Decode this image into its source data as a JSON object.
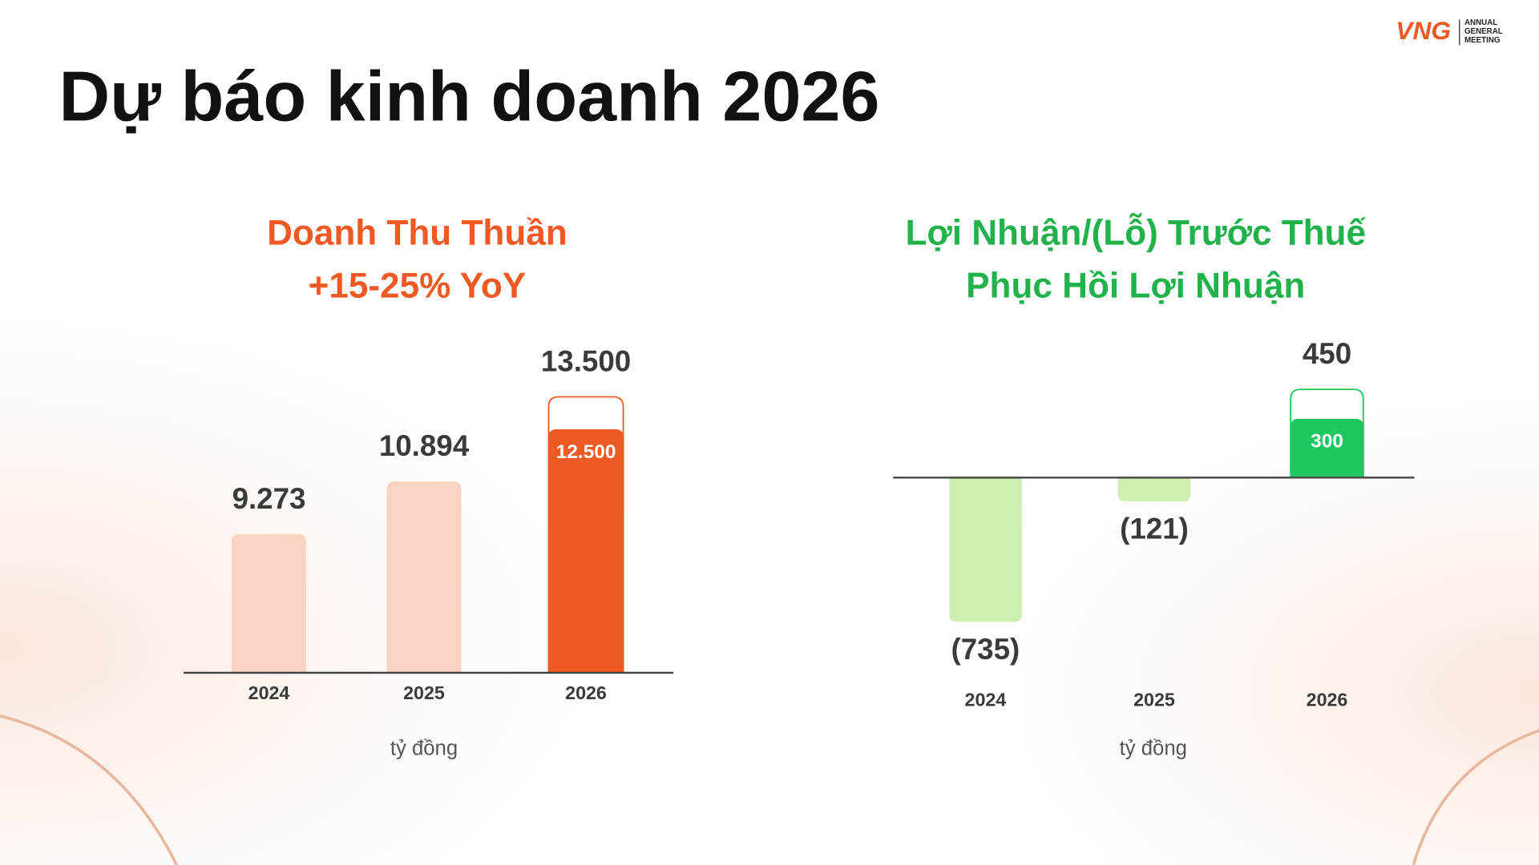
{
  "page_title": "Dự báo kinh doanh 2026",
  "logo": {
    "brand": "VNG",
    "event": [
      "ANNUAL",
      "GENERAL",
      "MEETING"
    ]
  },
  "chart_data": [
    {
      "type": "bar",
      "title": "Doanh Thu Thuần",
      "subtitle": "+15-25% YoY",
      "x_label": "tỷ đồng",
      "categories": [
        "2024",
        "2025",
        "2026"
      ],
      "values": [
        9273,
        10894,
        13500
      ],
      "value_labels": [
        "9.273",
        "10.894",
        "13.500"
      ],
      "low_values": [
        null,
        null,
        12500
      ],
      "low_value_labels": [
        null,
        null,
        "12.500"
      ],
      "colors": [
        "#fbd3c2",
        "#fbd3c2",
        "#ef5a24"
      ],
      "title_color": "#ef5a24",
      "ylim": [
        5000,
        15000
      ]
    },
    {
      "type": "bar",
      "title": "Lợi Nhuận/(Lỗ) Trước Thuế",
      "subtitle": "Phục Hồi Lợi Nhuận",
      "x_label": "tỷ đồng",
      "categories": [
        "2024",
        "2025",
        "2026"
      ],
      "values": [
        -735,
        -121,
        450
      ],
      "value_labels": [
        "(735)",
        "(121)",
        "450"
      ],
      "low_values": [
        null,
        null,
        300
      ],
      "colors": [
        "#cdeeb0",
        "#cdeeb0",
        "#1ec760"
      ],
      "title_color": "#22b24c",
      "ylim": [
        -1000,
        600
      ]
    }
  ]
}
